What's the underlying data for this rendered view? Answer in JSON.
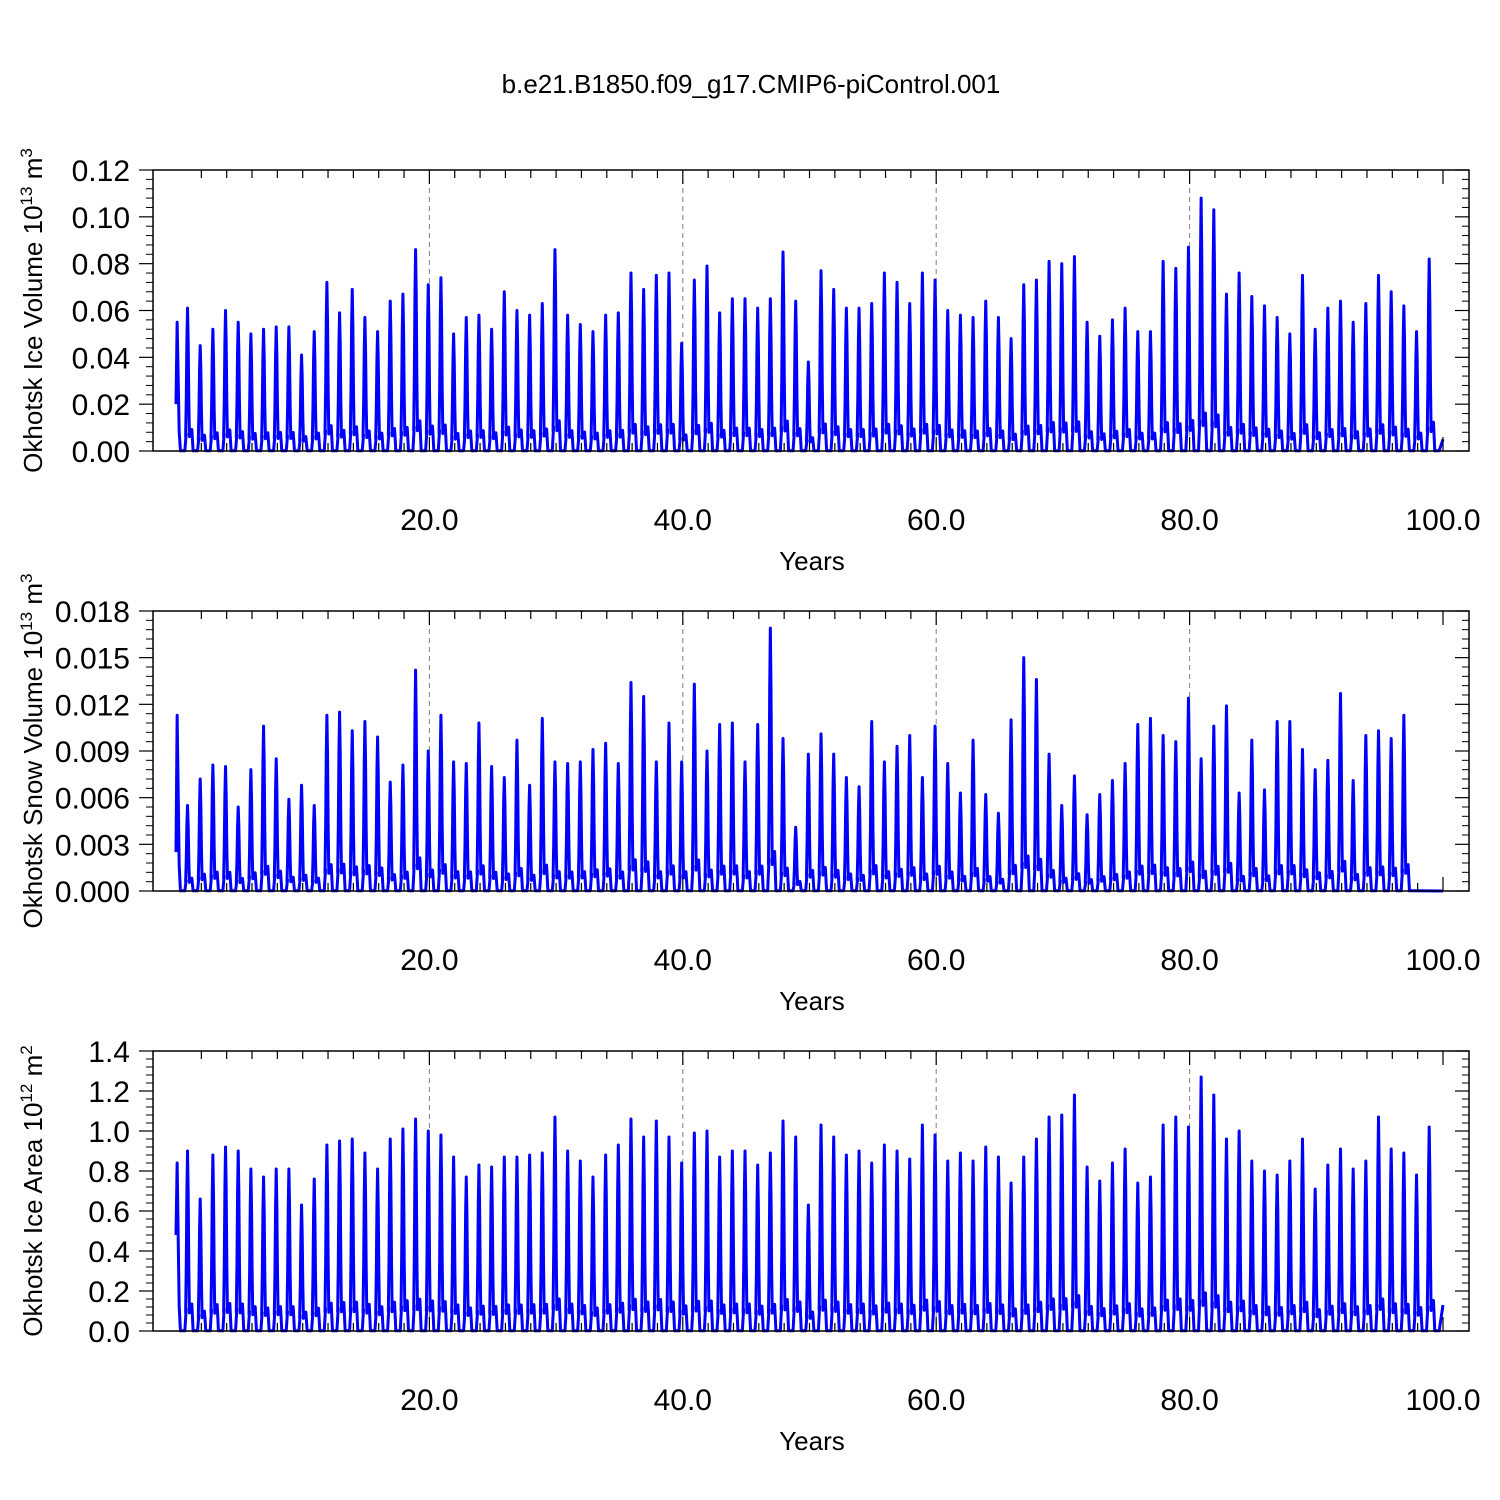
{
  "figure_title": "b.e21.B1850.f09_g17.CMIP6-piControl.001",
  "colors": {
    "series": "#0000ff",
    "axes": "#000000",
    "grid": "#808080"
  },
  "chart_data": [
    {
      "type": "line",
      "title": "b.e21.B1850.f09_g17.CMIP6-piControl.001",
      "xlabel": "Years",
      "ylabel": {
        "main": "Okhotsk Ice Volume 10",
        "exp": "13",
        "unit": " m",
        "unit_exp": "3"
      },
      "xlim": [
        0,
        100
      ],
      "ylim": [
        0,
        0.12
      ],
      "xticks": [
        20,
        40,
        60,
        80,
        100
      ],
      "xtick_labels": [
        "20.0",
        "40.0",
        "60.0",
        "80.0",
        "100.0"
      ],
      "yticks": [
        0,
        0.02,
        0.04,
        0.06,
        0.08,
        0.1,
        0.12
      ],
      "ytick_labels": [
        "0.00",
        "0.02",
        "0.04",
        "0.06",
        "0.08",
        "0.10",
        "0.12"
      ],
      "vertical_grid": "dashed at x ticks",
      "series": [
        {
          "description": "monthly values; one seasonal peak per model year, near zero in summer",
          "start_value": 0.02,
          "end_value": 0.005,
          "annual_peaks": [
            0.055,
            0.061,
            0.045,
            0.052,
            0.06,
            0.055,
            0.05,
            0.052,
            0.053,
            0.053,
            0.041,
            0.051,
            0.072,
            0.059,
            0.069,
            0.057,
            0.051,
            0.064,
            0.067,
            0.086,
            0.071,
            0.074,
            0.05,
            0.057,
            0.058,
            0.052,
            0.068,
            0.06,
            0.058,
            0.063,
            0.086,
            0.058,
            0.054,
            0.051,
            0.058,
            0.059,
            0.076,
            0.069,
            0.075,
            0.076,
            0.046,
            0.073,
            0.079,
            0.059,
            0.065,
            0.065,
            0.061,
            0.065,
            0.085,
            0.064,
            0.038,
            0.077,
            0.069,
            0.061,
            0.061,
            0.063,
            0.076,
            0.072,
            0.063,
            0.076,
            0.073,
            0.06,
            0.058,
            0.057,
            0.064,
            0.057,
            0.048,
            0.071,
            0.073,
            0.081,
            0.08,
            0.083,
            0.055,
            0.049,
            0.056,
            0.061,
            0.051,
            0.051,
            0.081,
            0.078,
            0.087,
            0.108,
            0.103,
            0.067,
            0.076,
            0.066,
            0.062,
            0.057,
            0.05,
            0.075,
            0.052,
            0.061,
            0.064,
            0.055,
            0.063,
            0.075,
            0.068,
            0.062,
            0.051,
            0.082
          ]
        }
      ]
    },
    {
      "type": "line",
      "xlabel": "Years",
      "ylabel": {
        "main": "Okhotsk Snow Volume 10",
        "exp": "13",
        "unit": " m",
        "unit_exp": "3"
      },
      "xlim": [
        0,
        100
      ],
      "ylim": [
        0,
        0.018
      ],
      "xticks": [
        20,
        40,
        60,
        80,
        100
      ],
      "xtick_labels": [
        "20.0",
        "40.0",
        "60.0",
        "80.0",
        "100.0"
      ],
      "yticks": [
        0,
        0.003,
        0.006,
        0.009,
        0.012,
        0.015,
        0.018
      ],
      "ytick_labels": [
        "0.000",
        "0.003",
        "0.006",
        "0.009",
        "0.012",
        "0.015",
        "0.018"
      ],
      "vertical_grid": "dashed at x ticks",
      "series": [
        {
          "description": "monthly values; one seasonal peak per model year, near zero in summer",
          "start_value": 0.0025,
          "end_value": 0.0,
          "annual_peaks": [
            0.0113,
            0.0055,
            0.0072,
            0.0081,
            0.008,
            0.0054,
            0.0078,
            0.0106,
            0.0085,
            0.0059,
            0.0068,
            0.0055,
            0.0113,
            0.0115,
            0.0103,
            0.0109,
            0.0099,
            0.007,
            0.0081,
            0.0142,
            0.009,
            0.0113,
            0.0083,
            0.0082,
            0.0108,
            0.008,
            0.0073,
            0.0097,
            0.0068,
            0.0111,
            0.0083,
            0.0082,
            0.0083,
            0.0091,
            0.0095,
            0.0082,
            0.0134,
            0.0125,
            0.0083,
            0.0108,
            0.0083,
            0.0133,
            0.009,
            0.0107,
            0.0108,
            0.0083,
            0.0107,
            0.0169,
            0.0098,
            0.0041,
            0.0088,
            0.0101,
            0.0088,
            0.0073,
            0.0067,
            0.0109,
            0.0083,
            0.0093,
            0.01,
            0.0073,
            0.0106,
            0.0082,
            0.0063,
            0.0097,
            0.0062,
            0.005,
            0.011,
            0.015,
            0.0136,
            0.0088,
            0.0055,
            0.0074,
            0.0049,
            0.0062,
            0.0071,
            0.0082,
            0.0107,
            0.0111,
            0.01,
            0.0096,
            0.0124,
            0.0085,
            0.0106,
            0.0119,
            0.0063,
            0.0097,
            0.0065,
            0.0109,
            0.0109,
            0.0091,
            0.0078,
            0.0084,
            0.0127,
            0.0071,
            0.01,
            0.0103,
            0.0098,
            0.0113
          ]
        }
      ]
    },
    {
      "type": "line",
      "xlabel": "Years",
      "ylabel": {
        "main": "Okhotsk Ice Area 10",
        "exp": "12",
        "unit": " m",
        "unit_exp": "2"
      },
      "xlim": [
        0,
        100
      ],
      "ylim": [
        0,
        1.4
      ],
      "xticks": [
        20,
        40,
        60,
        80,
        100
      ],
      "xtick_labels": [
        "20.0",
        "40.0",
        "60.0",
        "80.0",
        "100.0"
      ],
      "yticks": [
        0,
        0.2,
        0.4,
        0.6,
        0.8,
        1.0,
        1.2,
        1.4
      ],
      "ytick_labels": [
        "0.0",
        "0.2",
        "0.4",
        "0.6",
        "0.8",
        "1.0",
        "1.2",
        "1.4"
      ],
      "vertical_grid": "dashed at x ticks",
      "series": [
        {
          "description": "monthly values; one seasonal peak per model year, near zero in summer",
          "start_value": 0.48,
          "end_value": 0.13,
          "annual_peaks": [
            0.84,
            0.9,
            0.66,
            0.88,
            0.92,
            0.9,
            0.81,
            0.77,
            0.81,
            0.81,
            0.63,
            0.76,
            0.93,
            0.95,
            0.96,
            0.89,
            0.81,
            0.96,
            1.01,
            1.06,
            1.0,
            0.98,
            0.87,
            0.77,
            0.83,
            0.82,
            0.87,
            0.87,
            0.88,
            0.89,
            1.07,
            0.9,
            0.85,
            0.77,
            0.88,
            0.93,
            1.06,
            0.97,
            1.05,
            0.97,
            0.84,
            0.99,
            1.0,
            0.87,
            0.9,
            0.9,
            0.83,
            0.89,
            1.05,
            0.97,
            0.63,
            1.03,
            0.97,
            0.88,
            0.9,
            0.84,
            0.93,
            0.9,
            0.86,
            1.03,
            0.98,
            0.85,
            0.89,
            0.85,
            0.92,
            0.87,
            0.74,
            0.87,
            0.96,
            1.07,
            1.08,
            1.18,
            0.82,
            0.75,
            0.84,
            0.91,
            0.74,
            0.77,
            1.03,
            1.07,
            1.02,
            1.27,
            1.18,
            0.96,
            1.0,
            0.85,
            0.8,
            0.78,
            0.85,
            0.96,
            0.71,
            0.83,
            0.91,
            0.81,
            0.85,
            1.07,
            0.91,
            0.89,
            0.78,
            1.02
          ]
        }
      ]
    }
  ]
}
